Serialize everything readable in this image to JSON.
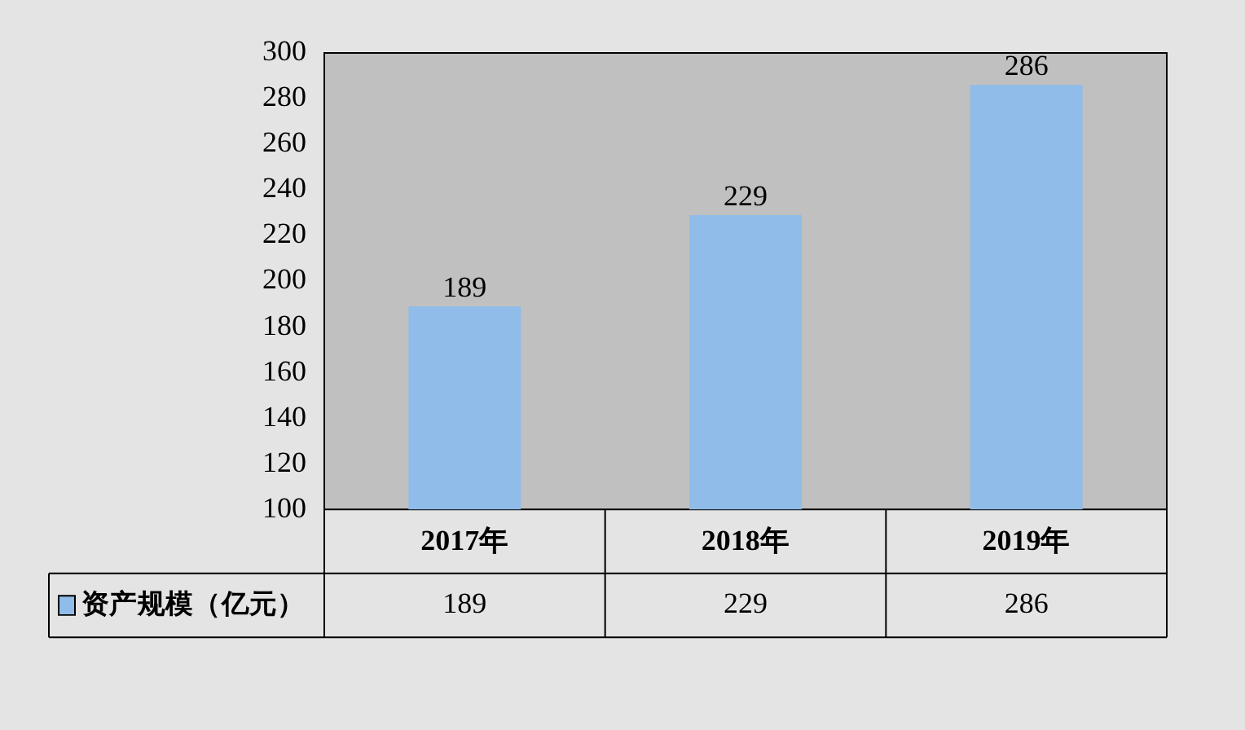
{
  "chart_data": {
    "type": "bar",
    "categories": [
      "2017年",
      "2018年",
      "2019年"
    ],
    "series": [
      {
        "name": "资产规模（亿元）",
        "color": "#8fbce8",
        "values": [
          189,
          229,
          286
        ],
        "value_labels": [
          "189",
          "229",
          "286"
        ]
      }
    ],
    "ylim": [
      100,
      300
    ],
    "yticks": [
      100,
      120,
      140,
      160,
      180,
      200,
      220,
      240,
      260,
      280,
      300
    ],
    "grid": false,
    "legend": "bottom",
    "annotations": [
      {
        "text": "189",
        "x": "2017年",
        "y": 189
      },
      {
        "text": "229",
        "x": "2018年",
        "y": 229
      },
      {
        "text": "286",
        "x": "2019年",
        "y": 286
      }
    ]
  }
}
